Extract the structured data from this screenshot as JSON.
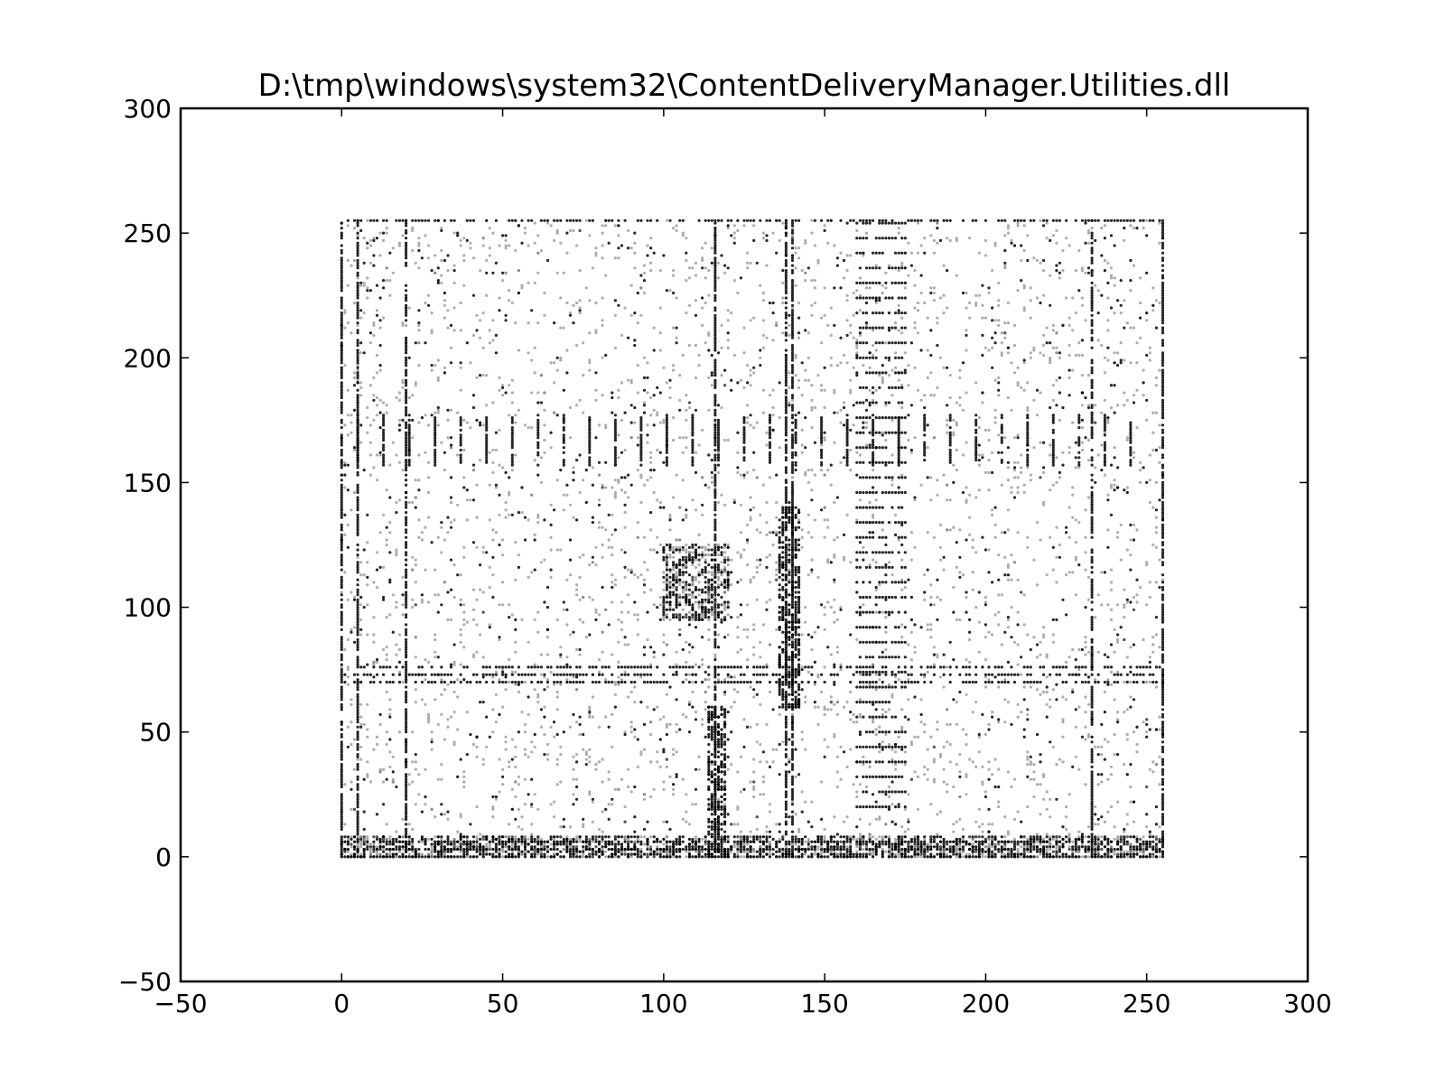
{
  "chart_data": {
    "type": "scatter",
    "title": "D:\\tmp\\windows\\system32\\ContentDeliveryManager.Utilities.dll",
    "xlabel": "",
    "ylabel": "",
    "xlim": [
      -50,
      300
    ],
    "ylim": [
      -50,
      300
    ],
    "xticks": [
      -50,
      0,
      50,
      100,
      150,
      200,
      250,
      300
    ],
    "yticks": [
      -50,
      0,
      50,
      100,
      150,
      200,
      250,
      300
    ],
    "xtick_labels": [
      "−50",
      "0",
      "50",
      "100",
      "150",
      "200",
      "250",
      "300"
    ],
    "ytick_labels": [
      "−50",
      "0",
      "50",
      "100",
      "150",
      "200",
      "250",
      "300"
    ],
    "grid": false,
    "legend": "none",
    "marker_color": "#000000",
    "point_domain": {
      "x": [
        0,
        255
      ],
      "y": [
        0,
        255
      ]
    },
    "features": {
      "vertical_lines_x": [
        0,
        5,
        20,
        116,
        138,
        140,
        233,
        255
      ],
      "horizontal_lines_y": [
        0,
        3,
        6,
        70,
        73,
        76,
        255
      ],
      "dense_cluster": {
        "x": [
          100,
          120
        ],
        "y": [
          95,
          125
        ]
      },
      "tick_row_y": [
        157,
        177
      ],
      "ladder_block": {
        "x": [
          160,
          175
        ],
        "y": [
          20,
          255
        ]
      }
    }
  }
}
